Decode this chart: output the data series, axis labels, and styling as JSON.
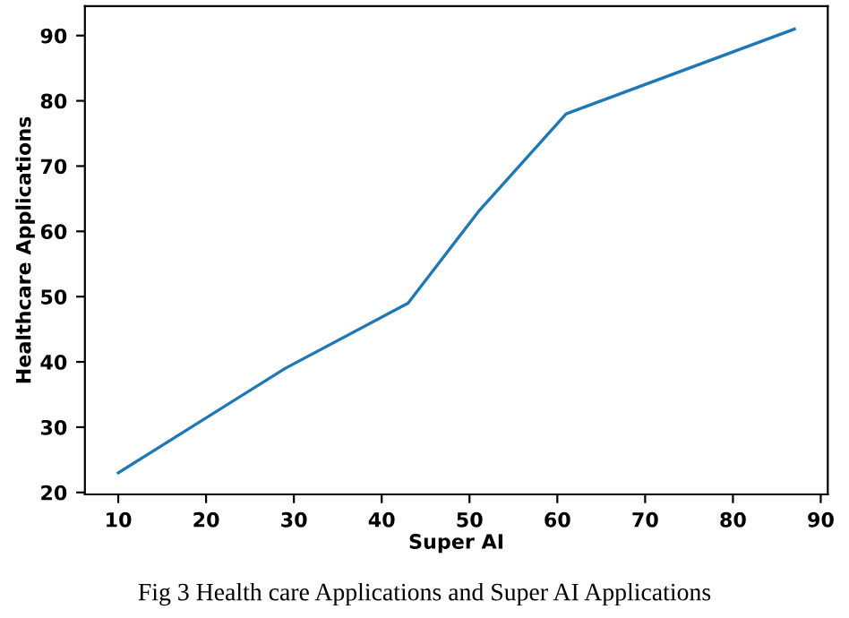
{
  "chart_data": {
    "type": "line",
    "xlabel": "Super AI",
    "ylabel": "Healthcare Applications",
    "x": [
      10,
      29,
      43,
      51,
      61,
      87
    ],
    "series": [
      {
        "color": "#1f77b4",
        "values": [
          23,
          39,
          49,
          63,
          78,
          91
        ]
      }
    ],
    "xlim": [
      6.2,
      90.8
    ],
    "xticks": [
      10,
      20,
      30,
      40,
      50,
      60,
      70,
      80,
      90
    ],
    "ylim": [
      19.7,
      94.5
    ],
    "yticks": [
      20,
      30,
      40,
      50,
      60,
      70,
      80,
      90
    ],
    "grid": false,
    "legend": false,
    "annotations": [
      "Fig 3 Health care Applications and Super AI Applications"
    ]
  }
}
